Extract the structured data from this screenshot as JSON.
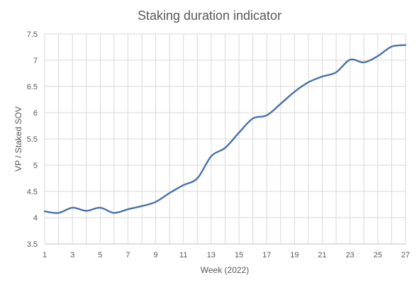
{
  "chart_data": {
    "type": "line",
    "title": "Staking duration indicator",
    "xlabel": "Week (2022)",
    "ylabel": "VP / Staked SOV",
    "xlim": [
      1,
      27
    ],
    "ylim": [
      3.5,
      7.5
    ],
    "x_ticks": [
      "1",
      "3",
      "5",
      "7",
      "9",
      "11",
      "13",
      "15",
      "17",
      "19",
      "21",
      "23",
      "25",
      "27"
    ],
    "y_ticks": [
      "3.5",
      "4",
      "4.5",
      "5",
      "5.5",
      "6",
      "6.5",
      "7",
      "7.5"
    ],
    "grid": true,
    "series_color": "#4a72a8",
    "series": [
      {
        "x": [
          1,
          2,
          3,
          4,
          5,
          6,
          7,
          8,
          9,
          10,
          11,
          12,
          13,
          14,
          15,
          16,
          17,
          18,
          19,
          20,
          21,
          22,
          23,
          24,
          25,
          26,
          27
        ],
        "values": [
          4.12,
          4.09,
          4.19,
          4.13,
          4.19,
          4.09,
          4.16,
          4.22,
          4.3,
          4.47,
          4.62,
          4.75,
          5.17,
          5.33,
          5.62,
          5.89,
          5.95,
          6.17,
          6.4,
          6.58,
          6.69,
          6.77,
          7.01,
          6.96,
          7.08,
          7.26,
          7.29
        ]
      }
    ]
  }
}
